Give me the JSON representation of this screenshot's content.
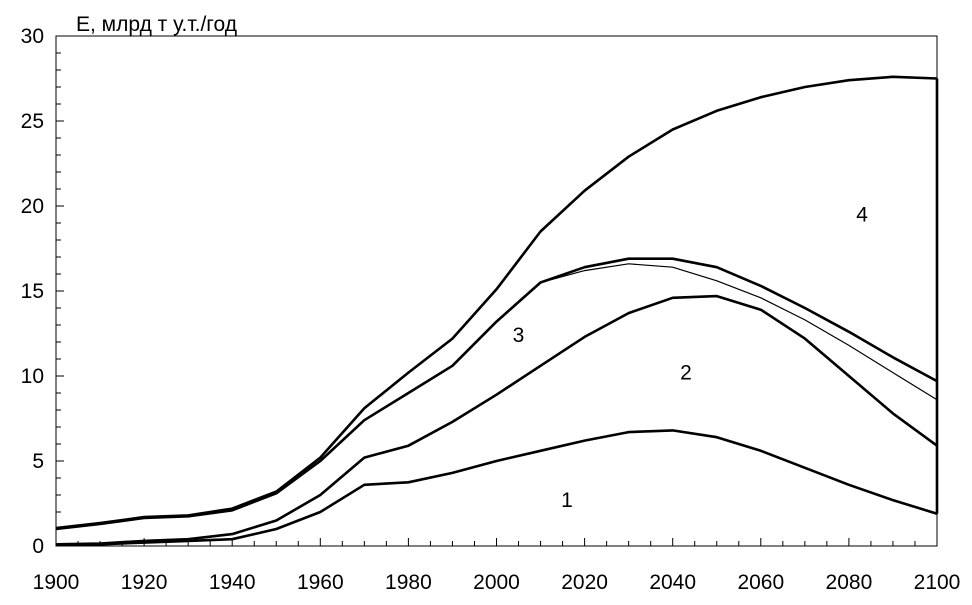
{
  "chart_data": {
    "type": "line",
    "title": "",
    "ylabel": "E, млрд т у.т./год",
    "xlabel": "",
    "xlim": [
      1900,
      2100
    ],
    "ylim": [
      0,
      30
    ],
    "x_ticks": [
      1900,
      1920,
      1940,
      1960,
      1980,
      2000,
      2020,
      2040,
      2060,
      2080,
      2100
    ],
    "y_ticks": [
      0,
      5,
      10,
      15,
      20,
      25,
      30
    ],
    "grid": false,
    "x": [
      1900,
      1910,
      1920,
      1930,
      1940,
      1950,
      1960,
      1970,
      1980,
      1990,
      2000,
      2010,
      2020,
      2030,
      2040,
      2050,
      2060,
      2070,
      2080,
      2090,
      2100
    ],
    "series": [
      {
        "values": [
          0.05,
          0.1,
          0.2,
          0.3,
          0.4,
          1.0,
          2.0,
          3.6,
          3.75,
          4.3,
          5.0,
          5.6,
          6.2,
          6.7,
          6.8,
          6.4,
          5.6,
          4.6,
          3.6,
          2.7,
          1.9
        ]
      },
      {
        "values": [
          0.1,
          0.15,
          0.3,
          0.4,
          0.7,
          1.5,
          3.0,
          5.2,
          5.9,
          7.3,
          8.9,
          10.6,
          12.3,
          13.7,
          14.6,
          14.7,
          13.9,
          12.2,
          10.0,
          7.8,
          5.9
        ]
      },
      {
        "values": [
          1.0,
          1.3,
          1.65,
          1.75,
          2.1,
          3.1,
          5.0,
          7.4,
          9.0,
          10.6,
          13.2,
          15.5,
          16.4,
          16.9,
          16.9,
          16.4,
          15.3,
          14.0,
          12.6,
          11.1,
          9.7
        ]
      },
      {
        "values": [
          1.0,
          1.3,
          1.65,
          1.75,
          2.1,
          3.1,
          5.0,
          7.4,
          9.0,
          10.6,
          13.2,
          15.5,
          16.2,
          16.6,
          16.4,
          15.6,
          14.6,
          13.3,
          11.8,
          10.2,
          8.6
        ],
        "thin": true
      },
      {
        "values": [
          1.05,
          1.35,
          1.7,
          1.8,
          2.2,
          3.2,
          5.2,
          8.1,
          10.2,
          12.2,
          15.1,
          18.5,
          20.9,
          22.9,
          24.5,
          25.6,
          26.4,
          27.0,
          27.4,
          27.6,
          27.5
        ]
      }
    ],
    "labels": [
      {
        "text": "1",
        "x": 2016,
        "y": 2.7
      },
      {
        "text": "2",
        "x": 2043,
        "y": 10.2
      },
      {
        "text": "3",
        "x": 2005,
        "y": 12.4
      },
      {
        "text": "4",
        "x": 2083,
        "y": 19.5
      }
    ]
  }
}
